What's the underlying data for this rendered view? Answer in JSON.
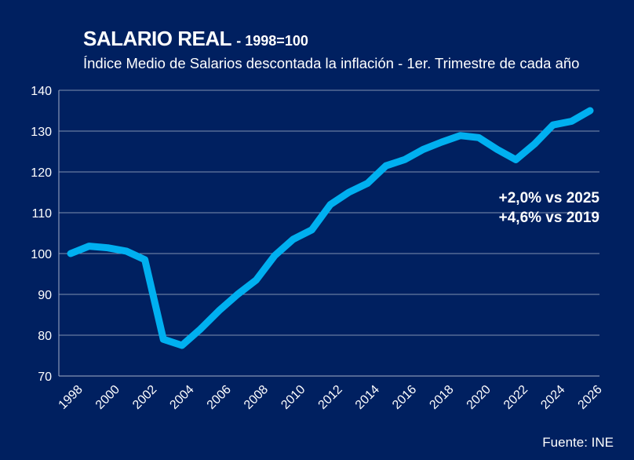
{
  "header": {
    "title": "SALARIO REAL",
    "title_suffix": "- 1998=100",
    "subtitle": "Índice Medio de Salarios descontada la inflación - 1er. Trimestre de cada año"
  },
  "source": "Fuente: INE",
  "colors": {
    "background": "#002060",
    "line": "#00B0F0",
    "grid": "#7F8FB0",
    "text": "#FFFFFF"
  },
  "chart_data": {
    "type": "line",
    "title": "SALARIO REAL - 1998=100",
    "subtitle": "Índice Medio de Salarios descontada la inflación - 1er. Trimestre de cada año",
    "xlim": [
      1998,
      2026
    ],
    "ylim": [
      70,
      140
    ],
    "y_ticks": [
      70,
      80,
      90,
      100,
      110,
      120,
      130,
      140
    ],
    "x_ticks": [
      "1998",
      "2000",
      "2002",
      "2004",
      "2006",
      "2008",
      "2010",
      "2012",
      "2014",
      "2016",
      "2018",
      "2020",
      "2022",
      "2024",
      "2026"
    ],
    "grid": "horizontal",
    "legend": "none",
    "series": [
      {
        "x": [
          1998,
          1999,
          2000,
          2001,
          2002,
          2003,
          2004,
          2005,
          2006,
          2007,
          2008,
          2009,
          2010,
          2011,
          2012,
          2013,
          2014,
          2015,
          2016,
          2017,
          2018,
          2019,
          2020,
          2021,
          2022,
          2023,
          2024,
          2025,
          2026
        ],
        "values": [
          100.0,
          101.8,
          101.4,
          100.6,
          98.5,
          79.0,
          77.5,
          81.5,
          86.0,
          90.0,
          93.5,
          99.5,
          103.5,
          105.8,
          112.0,
          115.0,
          117.2,
          121.5,
          123.0,
          125.5,
          127.3,
          128.9,
          128.4,
          125.5,
          123.0,
          126.8,
          131.5,
          132.4,
          135.0
        ]
      }
    ],
    "annotations": [
      "+2,0% vs 2025",
      "+4,6% vs 2019"
    ]
  }
}
